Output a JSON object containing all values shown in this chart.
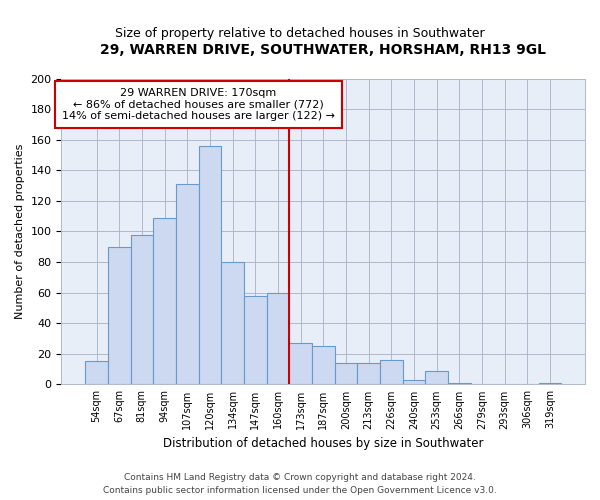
{
  "title": "29, WARREN DRIVE, SOUTHWATER, HORSHAM, RH13 9GL",
  "subtitle": "Size of property relative to detached houses in Southwater",
  "xlabel": "Distribution of detached houses by size in Southwater",
  "ylabel": "Number of detached properties",
  "bin_labels": [
    "54sqm",
    "67sqm",
    "81sqm",
    "94sqm",
    "107sqm",
    "120sqm",
    "134sqm",
    "147sqm",
    "160sqm",
    "173sqm",
    "187sqm",
    "200sqm",
    "213sqm",
    "226sqm",
    "240sqm",
    "253sqm",
    "266sqm",
    "279sqm",
    "293sqm",
    "306sqm",
    "319sqm"
  ],
  "bar_heights": [
    15,
    90,
    98,
    109,
    131,
    156,
    80,
    58,
    60,
    27,
    25,
    14,
    14,
    16,
    3,
    9,
    1,
    0,
    0,
    0,
    1
  ],
  "bar_color": "#ccd9f0",
  "bar_edge_color": "#6699cc",
  "vline_index": 9,
  "vline_color": "#cc0000",
  "annotation_line1": "29 WARREN DRIVE: 170sqm",
  "annotation_line2": "← 86% of detached houses are smaller (772)",
  "annotation_line3": "14% of semi-detached houses are larger (122) →",
  "annotation_box_color": "#ffffff",
  "annotation_box_edge": "#cc0000",
  "ylim": [
    0,
    200
  ],
  "yticks": [
    0,
    20,
    40,
    60,
    80,
    100,
    120,
    140,
    160,
    180,
    200
  ],
  "footer_line1": "Contains HM Land Registry data © Crown copyright and database right 2024.",
  "footer_line2": "Contains public sector information licensed under the Open Government Licence v3.0.",
  "bg_color": "#ffffff",
  "plot_bg_color": "#e8eef8",
  "grid_color": "#b0b8cc"
}
